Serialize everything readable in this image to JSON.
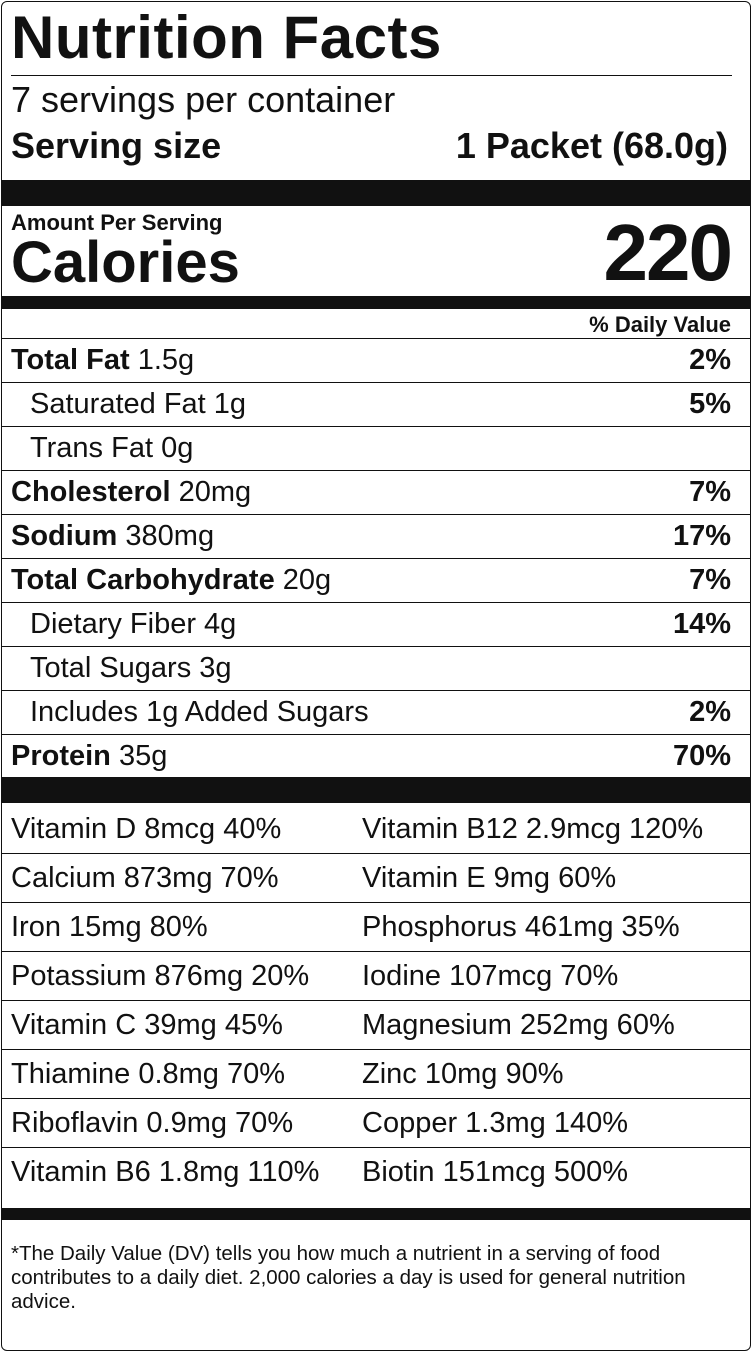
{
  "title": "Nutrition Facts",
  "servings_per_container": "7 servings per container",
  "serving_size": {
    "label": "Serving size",
    "value": "1 Packet (68.0g)"
  },
  "amount_per_serving": "Amount Per Serving",
  "calories": {
    "label": "Calories",
    "value": "220"
  },
  "daily_value_header": "% Daily Value",
  "nutrients": [
    {
      "name": "Total Fat",
      "amount": " 1.5g",
      "dv": "2%",
      "bold_name": true,
      "indent": false
    },
    {
      "name": "Saturated Fat 1g",
      "amount": "",
      "dv": "5%",
      "bold_name": false,
      "indent": true
    },
    {
      "name": "Trans Fat 0g",
      "amount": "",
      "dv": "",
      "bold_name": false,
      "indent": true
    },
    {
      "name": "Cholesterol",
      "amount": " 20mg",
      "dv": "7%",
      "bold_name": true,
      "indent": false
    },
    {
      "name": "Sodium",
      "amount": " 380mg",
      "dv": "17%",
      "bold_name": true,
      "indent": false
    },
    {
      "name": "Total Carbohydrate",
      "amount": " 20g",
      "dv": "7%",
      "bold_name": true,
      "indent": false
    },
    {
      "name": "Dietary Fiber 4g",
      "amount": "",
      "dv": "14%",
      "bold_name": false,
      "indent": true
    },
    {
      "name": "Total Sugars 3g",
      "amount": "",
      "dv": "",
      "bold_name": false,
      "indent": true
    },
    {
      "name": "Includes 1g Added Sugars",
      "amount": "",
      "dv": "2%",
      "bold_name": false,
      "indent": true
    },
    {
      "name": "Protein",
      "amount": " 35g",
      "dv": "70%",
      "bold_name": true,
      "indent": false
    }
  ],
  "vitamins": [
    [
      "Vitamin D 8mcg 40%",
      "Vitamin B12 2.9mcg 120%"
    ],
    [
      "Calcium 873mg 70%",
      "Vitamin E 9mg 60%"
    ],
    [
      "Iron 15mg 80%",
      "Phosphorus 461mg 35%"
    ],
    [
      "Potassium 876mg 20%",
      "Iodine 107mcg 70%"
    ],
    [
      "Vitamin C 39mg 45%",
      "Magnesium 252mg 60%"
    ],
    [
      "Thiamine 0.8mg 70%",
      "Zinc 10mg 90%"
    ],
    [
      "Riboflavin 0.9mg 70%",
      "Copper 1.3mg 140%"
    ],
    [
      "Vitamin B6 1.8mg 110%",
      "Biotin 151mcg 500%"
    ]
  ],
  "footnote": "*The Daily Value (DV) tells you how much a nutrient in a serving of food contributes to a daily diet. 2,000 calories a day is used for general nutrition advice."
}
